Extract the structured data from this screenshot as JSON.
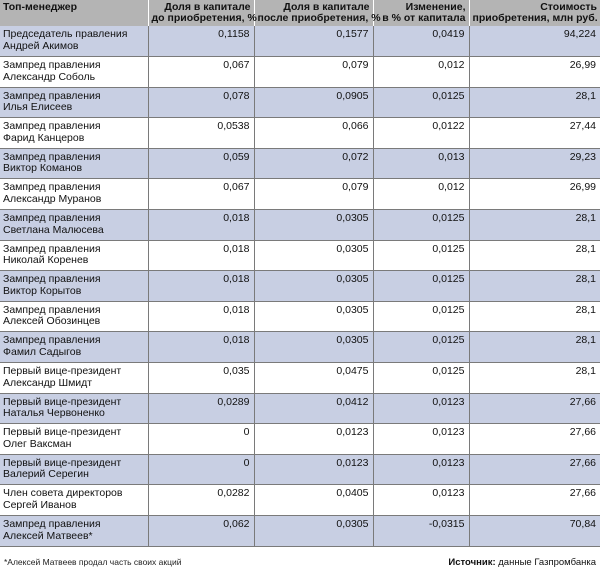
{
  "headers": {
    "name": "Топ-менеджер",
    "before_1": "Доля в капитале",
    "before_2": "до приобретения, %",
    "after_1": "Доля в капитале",
    "after_2": "после приобретения, %",
    "change_1": "Изменение,",
    "change_2": "в % от капитала",
    "cost_1": "Стоимость",
    "cost_2": "приобретения, млн руб."
  },
  "rows": [
    {
      "role": "Председатель правления",
      "name": "Андрей Акимов",
      "before": "0,1158",
      "after": "0,1577",
      "change": "0,0419",
      "cost": "94,224"
    },
    {
      "role": "Зампред правления",
      "name": "Александр Соболь",
      "before": "0,067",
      "after": "0,079",
      "change": "0,012",
      "cost": "26,99"
    },
    {
      "role": "Зампред правления",
      "name": "Илья Елисеев",
      "before": "0,078",
      "after": "0,0905",
      "change": "0,0125",
      "cost": "28,1"
    },
    {
      "role": "Зампред правления",
      "name": "Фарид Канцеров",
      "before": "0,0538",
      "after": "0,066",
      "change": "0,0122",
      "cost": "27,44"
    },
    {
      "role": "Зампред правления",
      "name": "Виктор Команов",
      "before": "0,059",
      "after": "0,072",
      "change": "0,013",
      "cost": "29,23"
    },
    {
      "role": "Зампред правления",
      "name": "Александр Муранов",
      "before": "0,067",
      "after": "0,079",
      "change": "0,012",
      "cost": "26,99"
    },
    {
      "role": "Зампред правления",
      "name": "Светлана Малюсева",
      "before": "0,018",
      "after": "0,0305",
      "change": "0,0125",
      "cost": "28,1"
    },
    {
      "role": "Зампред правления",
      "name": "Николай Коренев",
      "before": "0,018",
      "after": "0,0305",
      "change": "0,0125",
      "cost": "28,1"
    },
    {
      "role": "Зампред правления",
      "name": "Виктор Корытов",
      "before": "0,018",
      "after": "0,0305",
      "change": "0,0125",
      "cost": "28,1"
    },
    {
      "role": "Зампред правления",
      "name": "Алексей Обозинцев",
      "before": "0,018",
      "after": "0,0305",
      "change": "0,0125",
      "cost": "28,1"
    },
    {
      "role": "Зампред правления",
      "name": "Фамил Садыгов",
      "before": "0,018",
      "after": "0,0305",
      "change": "0,0125",
      "cost": "28,1"
    },
    {
      "role": "Первый вице-президент",
      "name": "Александр Шмидт",
      "before": "0,035",
      "after": "0,0475",
      "change": "0,0125",
      "cost": "28,1"
    },
    {
      "role": "Первый вице-президент",
      "name": "Наталья Червоненко",
      "before": "0,0289",
      "after": "0,0412",
      "change": "0,0123",
      "cost": "27,66"
    },
    {
      "role": "Первый вице-президент",
      "name": "Олег Ваксман",
      "before": "0",
      "after": "0,0123",
      "change": "0,0123",
      "cost": "27,66"
    },
    {
      "role": "Первый вице-президент",
      "name": "Валерий Серегин",
      "before": "0",
      "after": "0,0123",
      "change": "0,0123",
      "cost": "27,66"
    },
    {
      "role": "Член совета директоров",
      "name": "Сергей Иванов",
      "before": "0,0282",
      "after": "0,0405",
      "change": "0,0123",
      "cost": "27,66"
    },
    {
      "role": "Зампред правления",
      "name": "Алексей Матвеев*",
      "before": "0,062",
      "after": "0,0305",
      "change": "-0,0315",
      "cost": "70,84"
    }
  ],
  "footnote": "*Алексей Матвеев продал часть своих акций",
  "source_label": "Источник:",
  "source_text": " данные Газпромбанка",
  "colors": {
    "header_bg": "#b4b4b4",
    "shaded_row": "#c8cfe3",
    "plain_row": "#ffffff"
  }
}
